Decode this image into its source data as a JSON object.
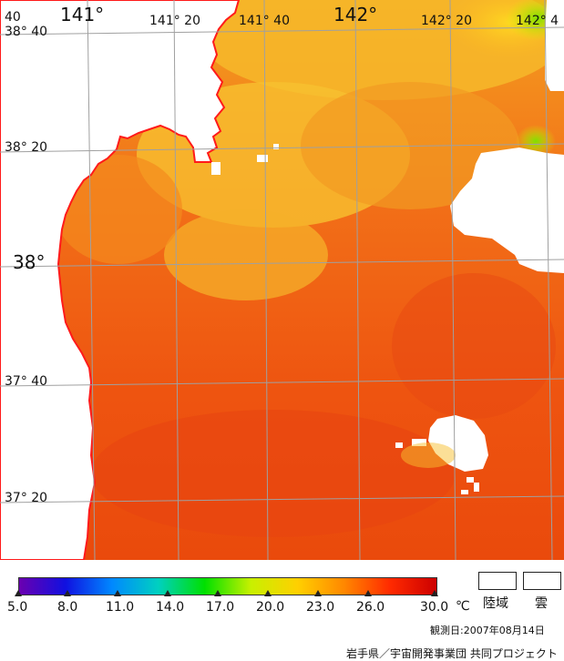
{
  "map": {
    "longitude_labels": [
      "40",
      "141°",
      "141° 20",
      "141° 40",
      "142°",
      "142° 20",
      "142° 4"
    ],
    "latitude_labels": [
      "38° 40",
      "38° 20",
      "38°",
      "37° 40",
      "37° 20"
    ],
    "colors": {
      "land": "#ffffff",
      "cloud": "#ffffff",
      "coastline": "#ff1a1a",
      "grid": "#a0a0a0"
    }
  },
  "legend": {
    "ticks": [
      "5.0",
      "8.0",
      "11.0",
      "14.0",
      "17.0",
      "20.0",
      "23.0",
      "26.0",
      "30.0"
    ],
    "unit": "℃",
    "land_label": "陸域",
    "cloud_label": "雲",
    "scale_colors": [
      "#6a00b0",
      "#1010e0",
      "#0088ff",
      "#00d0c0",
      "#00e000",
      "#c8f000",
      "#ffd000",
      "#ff8800",
      "#ff2a00",
      "#cc0000"
    ]
  },
  "observation_date": "観測日:2007年08月14日",
  "credit": "岩手県／宇宙開発事業団 共同プロジェクト"
}
